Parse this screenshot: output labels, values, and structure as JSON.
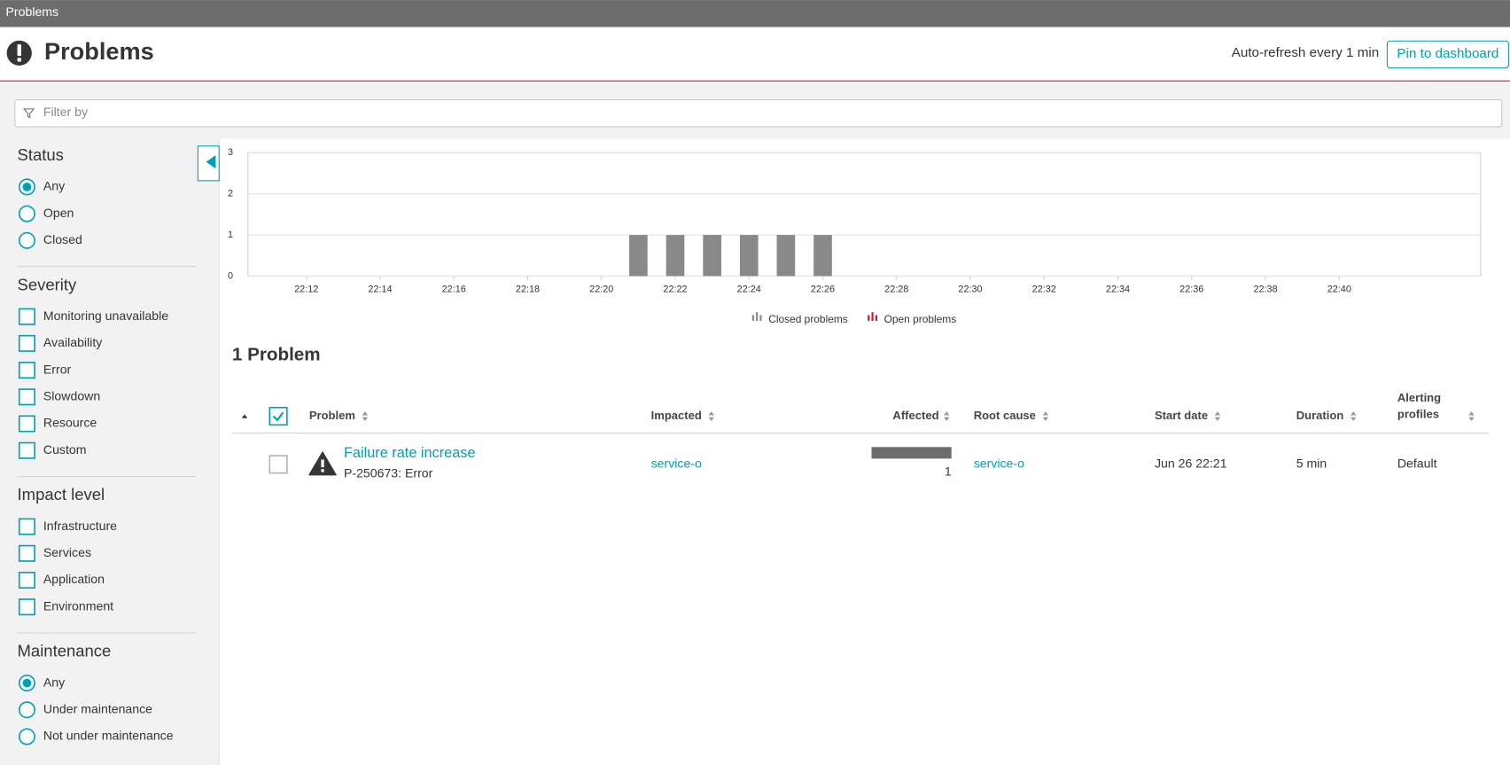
{
  "topbar": {
    "title": "Problems"
  },
  "header": {
    "title": "Problems",
    "auto_refresh": "Auto-refresh every 1 min",
    "pin_button": "Pin to dashboard"
  },
  "filter": {
    "placeholder": "Filter by"
  },
  "sidebar": {
    "sections": [
      {
        "title": "Status",
        "kind": "radio",
        "options": [
          {
            "label": "Any",
            "checked": true
          },
          {
            "label": "Open",
            "checked": false
          },
          {
            "label": "Closed",
            "checked": false
          }
        ]
      },
      {
        "title": "Severity",
        "kind": "checkbox",
        "options": [
          {
            "label": "Monitoring unavailable",
            "checked": false
          },
          {
            "label": "Availability",
            "checked": false
          },
          {
            "label": "Error",
            "checked": false
          },
          {
            "label": "Slowdown",
            "checked": false
          },
          {
            "label": "Resource",
            "checked": false
          },
          {
            "label": "Custom",
            "checked": false
          }
        ]
      },
      {
        "title": "Impact level",
        "kind": "checkbox",
        "options": [
          {
            "label": "Infrastructure",
            "checked": false
          },
          {
            "label": "Services",
            "checked": false
          },
          {
            "label": "Application",
            "checked": false
          },
          {
            "label": "Environment",
            "checked": false
          }
        ]
      },
      {
        "title": "Maintenance",
        "kind": "radio",
        "options": [
          {
            "label": "Any",
            "checked": true
          },
          {
            "label": "Under maintenance",
            "checked": false
          },
          {
            "label": "Not under maintenance",
            "checked": false
          }
        ]
      }
    ]
  },
  "chart_data": {
    "type": "bar",
    "x": [
      "22:21",
      "22:22",
      "22:23",
      "22:24",
      "22:25",
      "22:26"
    ],
    "series": [
      {
        "name": "Closed problems",
        "color": "#898989",
        "values": [
          1,
          1,
          1,
          1,
          1,
          1
        ]
      },
      {
        "name": "Open problems",
        "color": "#dc172a",
        "values": [
          0,
          0,
          0,
          0,
          0,
          0
        ]
      }
    ],
    "xlim": [
      "22:10:25",
      "22:43:50"
    ],
    "xticks": [
      "22:12",
      "22:14",
      "22:16",
      "22:18",
      "22:20",
      "22:22",
      "22:24",
      "22:26",
      "22:28",
      "22:30",
      "22:32",
      "22:34",
      "22:36",
      "22:38",
      "22:40"
    ],
    "ylim": [
      0,
      3
    ],
    "yticks": [
      0,
      1,
      2,
      3
    ],
    "grid": true,
    "stacked": true,
    "legend": "bottom"
  },
  "problems": {
    "count_label": "1 Problem",
    "select_all": true,
    "columns": [
      "Problem",
      "Impacted",
      "Affected",
      "Root cause",
      "Start date",
      "Duration",
      "Alerting profiles"
    ],
    "rows": [
      {
        "selected": false,
        "title": "Failure rate increase",
        "subtitle": "P-250673: Error",
        "impacted": "service-o",
        "affected": 1,
        "root_cause": "service-o",
        "start_date": "Jun 26 22:21",
        "duration": "5 min",
        "alerting_profile": "Default"
      }
    ]
  }
}
